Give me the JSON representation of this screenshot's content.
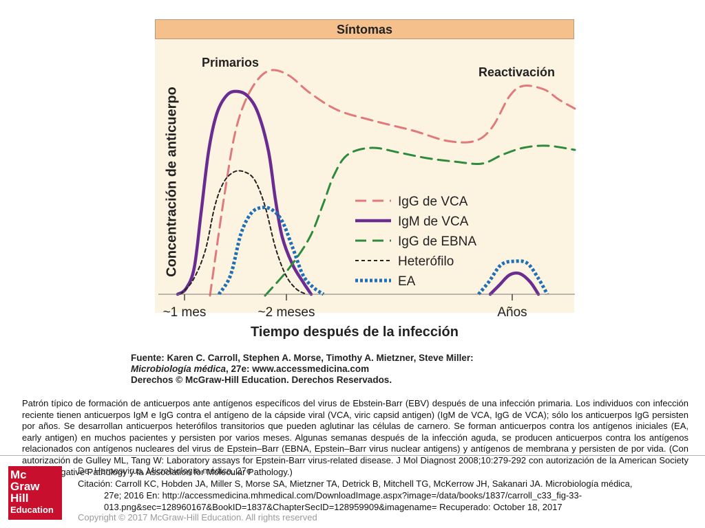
{
  "figure": {
    "band_title": "Síntomas",
    "phase_primary": "Primarios",
    "phase_reactivation": "Reactivación",
    "ylabel": "Concentración de anticuerpo",
    "xlabel": "Tiempo después de la infección",
    "source_line1": "Fuente: Karen C. Carroll, Stephen A. Morse, Timothy A. Mietzner, Steve Miller:",
    "source_line2_italic": "Microbiología médica",
    "source_line2_rest": ", 27e: www.accessmedicina.com",
    "source_line3": "Derechos © McGraw-Hill Education. Derechos Reservados.",
    "colors": {
      "band": "#f6c08c",
      "plot_bg": "#fdf3e1"
    }
  },
  "chart_data": {
    "type": "line",
    "title": "Síntomas",
    "xlabel": "Tiempo después de la infección",
    "ylabel": "Concentración de anticuerpo",
    "x_tick_labels": [
      "~1 mes",
      "~2 meses",
      "Años"
    ],
    "annotations": [
      "Primarios",
      "Reactivación"
    ],
    "legend_position": "right-center",
    "series": [
      {
        "name": "IgG de VCA",
        "color": "#e07a7a",
        "dash": "long-dash",
        "points": [
          [
            305,
            430
          ],
          [
            312,
            380
          ],
          [
            325,
            290
          ],
          [
            340,
            200
          ],
          [
            355,
            150
          ],
          [
            375,
            115
          ],
          [
            395,
            102
          ],
          [
            420,
            110
          ],
          [
            450,
            135
          ],
          [
            490,
            160
          ],
          [
            540,
            175
          ],
          [
            600,
            190
          ],
          [
            650,
            205
          ],
          [
            690,
            205
          ],
          [
            715,
            185
          ],
          [
            740,
            140
          ],
          [
            760,
            125
          ],
          [
            790,
            130
          ],
          [
            812,
            145
          ],
          [
            835,
            158
          ]
        ]
      },
      {
        "name": "IgM de VCA",
        "color": "#6b2c91",
        "dash": "solid",
        "points": [
          [
            258,
            428
          ],
          [
            270,
            420
          ],
          [
            282,
            390
          ],
          [
            292,
            310
          ],
          [
            303,
            220
          ],
          [
            315,
            165
          ],
          [
            330,
            138
          ],
          [
            345,
            133
          ],
          [
            360,
            140
          ],
          [
            375,
            165
          ],
          [
            390,
            220
          ],
          [
            400,
            290
          ],
          [
            410,
            345
          ],
          [
            425,
            385
          ],
          [
            440,
            410
          ],
          [
            452,
            428
          ]
        ]
      },
      {
        "name": "IgG de EBNA",
        "color": "#2e8b3e",
        "dash": "long-dash",
        "points": [
          [
            385,
            430
          ],
          [
            420,
            390
          ],
          [
            450,
            345
          ],
          [
            470,
            295
          ],
          [
            485,
            255
          ],
          [
            505,
            225
          ],
          [
            540,
            215
          ],
          [
            580,
            222
          ],
          [
            620,
            230
          ],
          [
            660,
            235
          ],
          [
            700,
            238
          ],
          [
            730,
            225
          ],
          [
            760,
            215
          ],
          [
            795,
            212
          ],
          [
            835,
            218
          ]
        ]
      },
      {
        "name": "Heterófilo",
        "color": "#222222",
        "dash": "short-dash",
        "points": [
          [
            262,
            428
          ],
          [
            280,
            408
          ],
          [
            298,
            365
          ],
          [
            312,
            300
          ],
          [
            325,
            265
          ],
          [
            340,
            250
          ],
          [
            355,
            250
          ],
          [
            370,
            262
          ],
          [
            385,
            300
          ],
          [
            400,
            360
          ],
          [
            415,
            400
          ],
          [
            430,
            420
          ],
          [
            445,
            428
          ]
        ]
      },
      {
        "name": "EA",
        "color": "#1f6fb5",
        "dash": "dotted",
        "points": [
          [
            318,
            428
          ],
          [
            335,
            400
          ],
          [
            350,
            340
          ],
          [
            365,
            310
          ],
          [
            380,
            302
          ],
          [
            395,
            305
          ],
          [
            410,
            322
          ],
          [
            425,
            360
          ],
          [
            440,
            400
          ],
          [
            455,
            418
          ],
          [
            470,
            428
          ]
        ]
      },
      {
        "name": "IgM de VCA (reactivación)",
        "color": "#6b2c91",
        "dash": "solid",
        "points": [
          [
            712,
            428
          ],
          [
            725,
            415
          ],
          [
            740,
            400
          ],
          [
            755,
            398
          ],
          [
            770,
            410
          ],
          [
            782,
            428
          ]
        ]
      },
      {
        "name": "EA (reactivación)",
        "color": "#1f6fb5",
        "dash": "dotted",
        "points": [
          [
            695,
            428
          ],
          [
            710,
            410
          ],
          [
            728,
            385
          ],
          [
            748,
            380
          ],
          [
            766,
            383
          ],
          [
            782,
            405
          ],
          [
            795,
            428
          ]
        ]
      }
    ]
  },
  "caption": "Patrón típico de formación de anticuerpos ante antígenos específicos del virus de Ebstein-Barr (EBV) después de una infección primaria. Los individuos con infección reciente tienen anticuerpos IgM e IgG contra el antígeno de la cápside viral (VCA, viric capsid antigen) (IgM de VCA, IgG de VCA); sólo los anticuerpos IgG persisten por años. Se desarrollan anticuerpos heterófilos transitorios que pueden aglutinar las células de carnero. Se forman anticuerpos contra los antígenos iniciales (EA, early antigen) en muchos pacientes y persisten por varios meses. Algunas semanas después de la infección aguda, se producen anticuerpos contra los antígenos relacionados con antígenos nucleares del virus de Epstein–Barr (EBNA, Epstein–Barr virus nuclear antigens) y antígenos de membrana y persisten de por vida. (Con autorización de Gulley ML, Tang W: Laboratory assays for Epstein-Barr virus-related disease. J Mol Diagnost 2008;10:279-292 con autorización de la American Society for Investigative Pathology y la Association for Molecular Pathology.)",
  "footer": {
    "logo_lines": [
      "Mc",
      "Graw",
      "Hill",
      "Education"
    ],
    "from_line": "De: Herpesvirus, Microbiología médica, 27e",
    "citation_line1": "Citación: Carroll KC, Hobden JA, Miller S, Morse SA, Mietzner TA, Detrick B, Mitchell TG, McKerrow JH, Sakanari JA. Microbiología médica,",
    "citation_line2": "27e; 2016 En: http://accessmedicina.mhmedical.com/DownloadImage.aspx?image=/data/books/1837/carroll_c33_fig-33-",
    "citation_line3": "013.png&sec=128960167&BookID=1837&ChapterSecID=128959909&imagename= Recuperado: October 18, 2017",
    "copyright": "Copyright © 2017 McGraw-Hill Education. All rights reserved",
    "logo_color": "#c8102e"
  }
}
